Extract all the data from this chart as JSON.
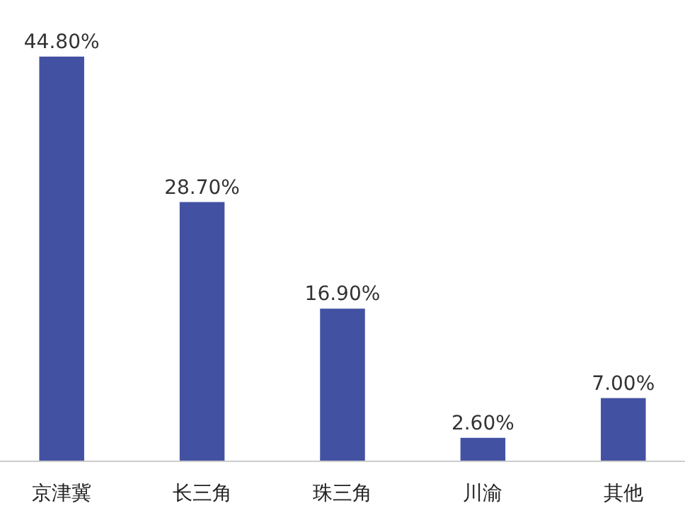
{
  "chart_data": {
    "type": "bar",
    "categories": [
      "京津冀",
      "长三角",
      "珠三角",
      "川渝",
      "其他"
    ],
    "values": [
      44.8,
      28.7,
      16.9,
      2.6,
      7.0
    ],
    "value_labels": [
      "44.80%",
      "28.70%",
      "16.90%",
      "2.60%",
      "7.00%"
    ],
    "color": "#4351a3"
  }
}
